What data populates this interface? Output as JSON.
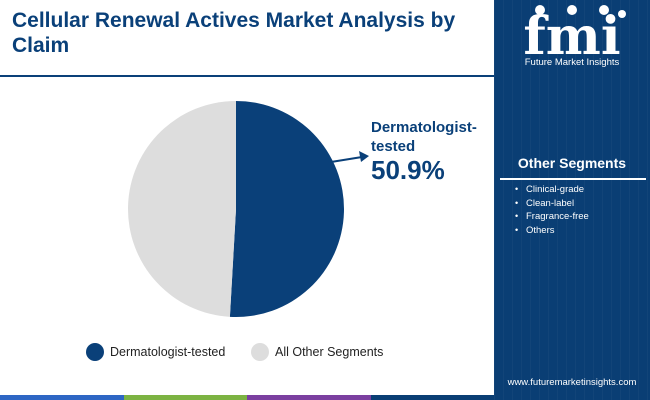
{
  "title": "Cellular Renewal Actives Market Analysis by Claim",
  "brand": {
    "logo_text": "fmi",
    "name": "Future Market Insights",
    "website": "www.futuremarketinsights.com"
  },
  "sidebar": {
    "heading": "Other Segments",
    "items": [
      "Clinical-grade",
      "Clean-label",
      "Fragrance-free",
      "Others"
    ]
  },
  "callout": {
    "label": "Dermatologist-tested",
    "value": "50.9%"
  },
  "colors": {
    "primary": "#0a4079",
    "other": "#dddddd",
    "sidebar_bg": "#0a3e74",
    "bottom_bar": [
      "#2e66c4",
      "#7cb342",
      "#7b3fa0",
      "#0a3e74"
    ]
  },
  "chart_data": {
    "type": "pie",
    "slices": [
      {
        "label": "Dermatologist-tested",
        "value": 50.9,
        "color": "#0a4079"
      },
      {
        "label": "All Other Segments",
        "value": 49.1,
        "color": "#dddddd"
      }
    ],
    "legend": "bottom",
    "start": "top, clockwise"
  }
}
